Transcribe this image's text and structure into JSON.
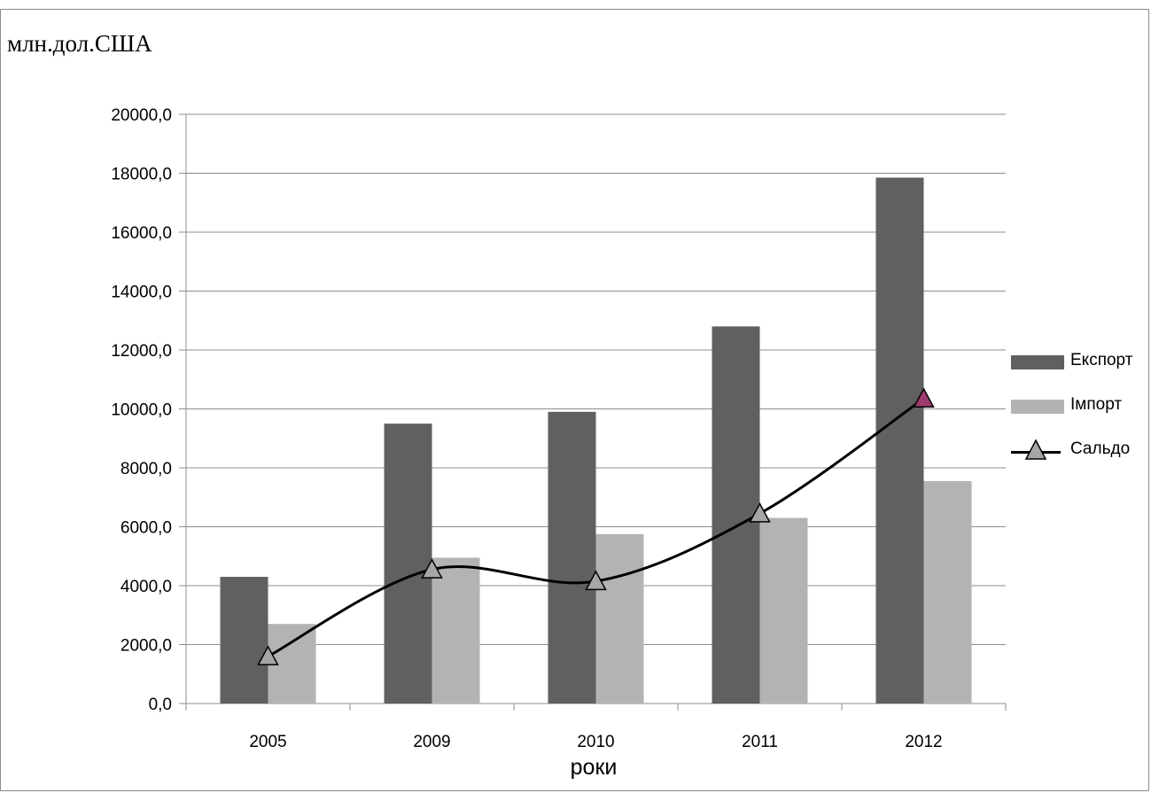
{
  "unit_label": "млн.дол.США",
  "colors": {
    "export": "#606060",
    "import": "#b3b3b3",
    "balance_line": "#000000",
    "balance_marker": "#a6a6a6",
    "balance_marker_last": "#9e3c6e",
    "grid": "#8c8c8c"
  },
  "chart_data": {
    "type": "bar",
    "categories": [
      "2005",
      "2009",
      "2010",
      "2011",
      "2012"
    ],
    "xlabel": "роки",
    "ylabel": "",
    "ylim": [
      0,
      20000
    ],
    "y_ticks": [
      "0,0",
      "2000,0",
      "4000,0",
      "6000,0",
      "8000,0",
      "10000,0",
      "12000,0",
      "14000,0",
      "16000,0",
      "18000,0",
      "20000,0"
    ],
    "grid": true,
    "legend_position": "right",
    "series": [
      {
        "name": "Експорт",
        "type": "bar",
        "values": [
          4300,
          9500,
          9900,
          12800,
          17850
        ]
      },
      {
        "name": "Імпорт",
        "type": "bar",
        "values": [
          2700,
          4950,
          5750,
          6300,
          7550
        ]
      },
      {
        "name": "Сальдо",
        "type": "line",
        "smooth": true,
        "marker": "triangle",
        "values": [
          1600,
          4550,
          4150,
          6450,
          10350
        ]
      }
    ]
  }
}
